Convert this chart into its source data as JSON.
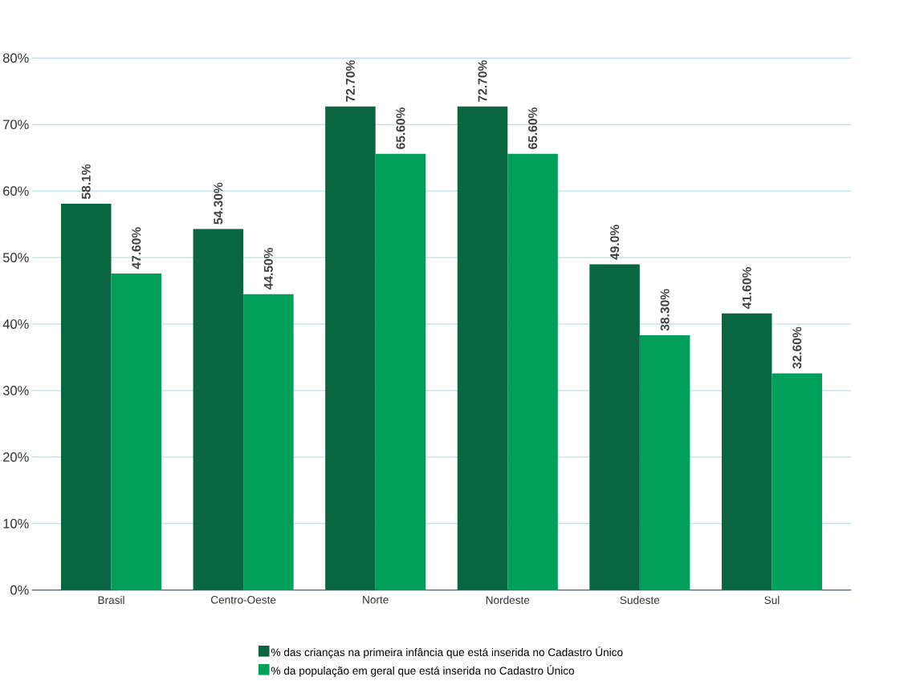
{
  "chart_data": {
    "type": "bar",
    "categories": [
      "Brasil",
      "Centro-Oeste",
      "Norte",
      "Nordeste",
      "Sudeste",
      "Sul"
    ],
    "series": [
      {
        "name": "% das crianças na primeira infância que está inserida no Cadastro Único",
        "color": "#0a6640",
        "values": [
          58.1,
          54.3,
          72.7,
          72.7,
          49.0,
          41.6
        ],
        "value_labels": [
          "58.1%",
          "54.30%",
          "72.70%",
          "72.70%",
          "49.0%",
          "41.60%"
        ]
      },
      {
        "name": "% da população em geral que está inserida no Cadastro Único",
        "color": "#00a05a",
        "values": [
          47.6,
          44.5,
          65.6,
          65.6,
          38.3,
          32.6
        ],
        "value_labels": [
          "47.60%",
          "44.50%",
          "65.60%",
          "65.60%",
          "38.30%",
          "32.60%"
        ]
      }
    ],
    "ylim": [
      0,
      80
    ],
    "yticks": [
      {
        "value": 0,
        "label": "0%"
      },
      {
        "value": 10,
        "label": "10%"
      },
      {
        "value": 20,
        "label": "20%"
      },
      {
        "value": 30,
        "label": "30%"
      },
      {
        "value": 40,
        "label": "40%"
      },
      {
        "value": 50,
        "label": "50%"
      },
      {
        "value": 60,
        "label": "60%"
      },
      {
        "value": 70,
        "label": "70%"
      },
      {
        "value": 80,
        "label": "80%"
      }
    ],
    "grid": "y",
    "legend": "bottom"
  }
}
